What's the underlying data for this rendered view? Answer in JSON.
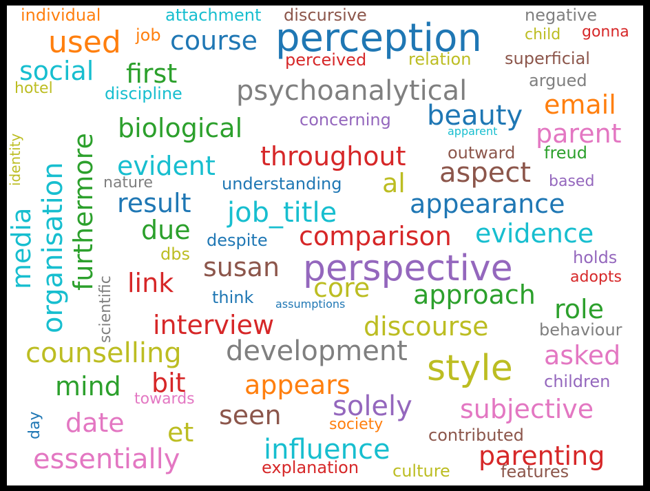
{
  "words": [
    {
      "text": "individual",
      "color": "#ff7f0e"
    },
    {
      "text": "attachment",
      "color": "#17becf"
    },
    {
      "text": "discursive",
      "color": "#8c564b"
    },
    {
      "text": "negative",
      "color": "#7f7f7f"
    },
    {
      "text": "used",
      "color": "#ff7f0e"
    },
    {
      "text": "job",
      "color": "#ff7f0e"
    },
    {
      "text": "course",
      "color": "#1f77b4"
    },
    {
      "text": "perception",
      "color": "#1f77b4"
    },
    {
      "text": "child",
      "color": "#bcbd22"
    },
    {
      "text": "gonna",
      "color": "#d62728"
    },
    {
      "text": "social",
      "color": "#17becf"
    },
    {
      "text": "perceived",
      "color": "#d62728"
    },
    {
      "text": "relation",
      "color": "#bcbd22"
    },
    {
      "text": "superficial",
      "color": "#8c564b"
    },
    {
      "text": "first",
      "color": "#2ca02c"
    },
    {
      "text": "hotel",
      "color": "#bcbd22"
    },
    {
      "text": "discipline",
      "color": "#17becf"
    },
    {
      "text": "psychoanalytical",
      "color": "#7f7f7f"
    },
    {
      "text": "argued",
      "color": "#7f7f7f"
    },
    {
      "text": "email",
      "color": "#ff7f0e"
    },
    {
      "text": "identity",
      "color": "#bcbd22"
    },
    {
      "text": "beauty",
      "color": "#1f77b4"
    },
    {
      "text": "concerning",
      "color": "#9467bd"
    },
    {
      "text": "biological",
      "color": "#2ca02c"
    },
    {
      "text": "apparent",
      "color": "#17becf"
    },
    {
      "text": "parent",
      "color": "#e377c2"
    },
    {
      "text": "organisation",
      "color": "#17becf"
    },
    {
      "text": "furthermore",
      "color": "#2ca02c"
    },
    {
      "text": "throughout",
      "color": "#d62728"
    },
    {
      "text": "outward",
      "color": "#8c564b"
    },
    {
      "text": "freud",
      "color": "#2ca02c"
    },
    {
      "text": "evident",
      "color": "#17becf"
    },
    {
      "text": "aspect",
      "color": "#8c564b"
    },
    {
      "text": "al",
      "color": "#bcbd22"
    },
    {
      "text": "nature",
      "color": "#7f7f7f"
    },
    {
      "text": "understanding",
      "color": "#1f77b4"
    },
    {
      "text": "based",
      "color": "#9467bd"
    },
    {
      "text": "media",
      "color": "#17becf"
    },
    {
      "text": "result",
      "color": "#1f77b4"
    },
    {
      "text": "job_title",
      "color": "#17becf"
    },
    {
      "text": "appearance",
      "color": "#1f77b4"
    },
    {
      "text": "due",
      "color": "#2ca02c"
    },
    {
      "text": "comparison",
      "color": "#d62728"
    },
    {
      "text": "evidence",
      "color": "#17becf"
    },
    {
      "text": "scientific",
      "color": "#7f7f7f"
    },
    {
      "text": "despite",
      "color": "#1f77b4"
    },
    {
      "text": "dbs",
      "color": "#bcbd22"
    },
    {
      "text": "susan",
      "color": "#8c564b"
    },
    {
      "text": "perspective",
      "color": "#9467bd"
    },
    {
      "text": "holds",
      "color": "#9467bd"
    },
    {
      "text": "link",
      "color": "#d62728"
    },
    {
      "text": "core",
      "color": "#bcbd22"
    },
    {
      "text": "adopts",
      "color": "#d62728"
    },
    {
      "text": "think",
      "color": "#1f77b4"
    },
    {
      "text": "approach",
      "color": "#2ca02c"
    },
    {
      "text": "assumptions",
      "color": "#1f77b4"
    },
    {
      "text": "role",
      "color": "#2ca02c"
    },
    {
      "text": "interview",
      "color": "#d62728"
    },
    {
      "text": "discourse",
      "color": "#bcbd22"
    },
    {
      "text": "behaviour",
      "color": "#7f7f7f"
    },
    {
      "text": "counselling",
      "color": "#bcbd22"
    },
    {
      "text": "development",
      "color": "#7f7f7f"
    },
    {
      "text": "asked",
      "color": "#e377c2"
    },
    {
      "text": "style",
      "color": "#bcbd22"
    },
    {
      "text": "mind",
      "color": "#2ca02c"
    },
    {
      "text": "bit",
      "color": "#d62728"
    },
    {
      "text": "appears",
      "color": "#ff7f0e"
    },
    {
      "text": "children",
      "color": "#9467bd"
    },
    {
      "text": "towards",
      "color": "#e377c2"
    },
    {
      "text": "solely",
      "color": "#9467bd"
    },
    {
      "text": "subjective",
      "color": "#e377c2"
    },
    {
      "text": "day",
      "color": "#1f77b4"
    },
    {
      "text": "date",
      "color": "#e377c2"
    },
    {
      "text": "seen",
      "color": "#8c564b"
    },
    {
      "text": "et",
      "color": "#bcbd22"
    },
    {
      "text": "society",
      "color": "#ff7f0e"
    },
    {
      "text": "contributed",
      "color": "#8c564b"
    },
    {
      "text": "influence",
      "color": "#17becf"
    },
    {
      "text": "essentially",
      "color": "#e377c2"
    },
    {
      "text": "parenting",
      "color": "#d62728"
    },
    {
      "text": "explanation",
      "color": "#d62728"
    },
    {
      "text": "culture",
      "color": "#bcbd22"
    },
    {
      "text": "features",
      "color": "#8c564b"
    }
  ]
}
